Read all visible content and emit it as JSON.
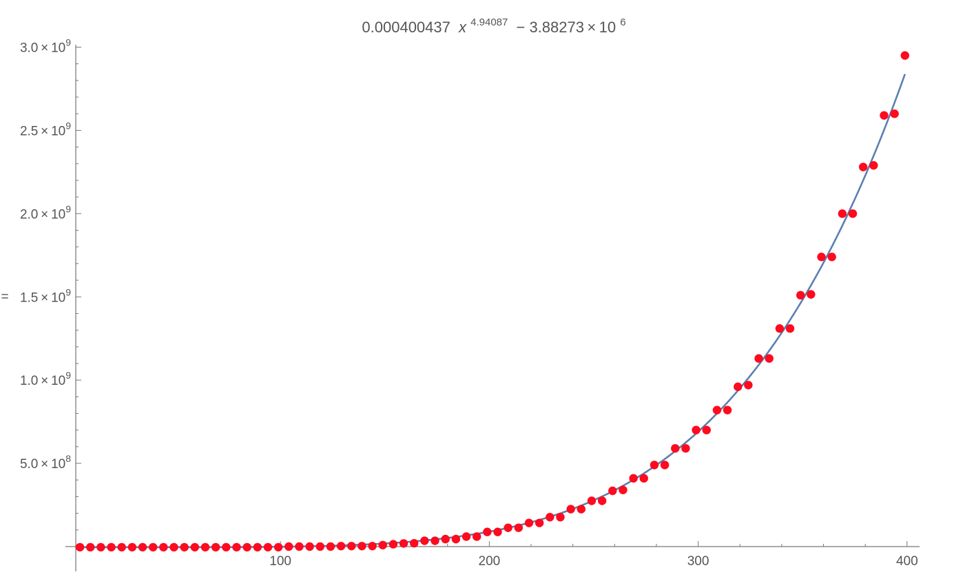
{
  "chart_data": {
    "type": "scatter",
    "title": {
      "coef": "0.000400437",
      "var": "x",
      "exponent": "4.94087",
      "rest": "− 3.88273 × 10",
      "rest_exponent": "6"
    },
    "ylabel": "=",
    "xlabel": "",
    "xlim": [
      2,
      406
    ],
    "ylim": [
      -160000000.0,
      3000000000.0
    ],
    "x_ticks": [
      {
        "value": 100,
        "label": "100"
      },
      {
        "value": 200,
        "label": "200"
      },
      {
        "value": 300,
        "label": "300"
      },
      {
        "value": 400,
        "label": "400"
      }
    ],
    "y_ticks": [
      {
        "value": 500000000,
        "mantissa": "5.0",
        "exp": "8"
      },
      {
        "value": 1000000000,
        "mantissa": "1.0",
        "exp": "9"
      },
      {
        "value": 1500000000,
        "mantissa": "1.5",
        "exp": "9"
      },
      {
        "value": 2000000000,
        "mantissa": "2.0",
        "exp": "9"
      },
      {
        "value": 2500000000,
        "mantissa": "2.5",
        "exp": "9"
      },
      {
        "value": 3000000000,
        "mantissa": "3.0",
        "exp": "9"
      }
    ],
    "fit": {
      "name": "",
      "coefficient": 0.000400437,
      "exponent": 4.94087,
      "offset": -3882730,
      "x_range": [
        4,
        399
      ],
      "color": "#5b7fb2"
    },
    "series": [
      {
        "name": "",
        "color": "#ff0a1e",
        "points": [
          [
            4,
            -3800000
          ],
          [
            9,
            -3800000
          ],
          [
            14,
            -3800000
          ],
          [
            19,
            -3800000
          ],
          [
            24,
            -3800000
          ],
          [
            29,
            -3800000
          ],
          [
            34,
            -3800000
          ],
          [
            39,
            -3800000
          ],
          [
            44,
            -3800000
          ],
          [
            49,
            -3800000
          ],
          [
            54,
            -3800000
          ],
          [
            59,
            -3800000
          ],
          [
            64,
            -3800000
          ],
          [
            69,
            -3800000
          ],
          [
            74,
            -3800000
          ],
          [
            79,
            -3800000
          ],
          [
            84,
            -3800000
          ],
          [
            89,
            -3800000
          ],
          [
            94,
            -3800000
          ],
          [
            99,
            -3800000
          ],
          [
            104,
            0
          ],
          [
            109,
            0
          ],
          [
            114,
            0
          ],
          [
            119,
            0
          ],
          [
            124,
            0
          ],
          [
            129,
            3000000
          ],
          [
            134,
            3000000
          ],
          [
            139,
            3000000
          ],
          [
            144,
            3000000
          ],
          [
            149,
            9000000
          ],
          [
            154,
            14000000
          ],
          [
            159,
            19000000
          ],
          [
            164,
            20000000
          ],
          [
            169,
            35000000
          ],
          [
            174,
            35000000
          ],
          [
            179,
            45000000
          ],
          [
            184,
            45000000
          ],
          [
            189,
            60000000
          ],
          [
            194,
            60000000
          ],
          [
            199,
            88000000
          ],
          [
            204,
            88000000
          ],
          [
            209,
            113000000
          ],
          [
            214,
            113000000
          ],
          [
            219,
            142000000
          ],
          [
            224,
            142000000
          ],
          [
            229,
            177000000
          ],
          [
            234,
            177000000
          ],
          [
            239,
            225000000
          ],
          [
            244,
            225000000
          ],
          [
            249,
            275000000
          ],
          [
            254,
            275000000
          ],
          [
            259,
            335000000
          ],
          [
            264,
            340000000
          ],
          [
            269,
            410000000
          ],
          [
            274,
            410000000
          ],
          [
            279,
            490000000
          ],
          [
            284,
            490000000
          ],
          [
            289,
            590000000
          ],
          [
            294,
            590000000
          ],
          [
            299,
            700000000
          ],
          [
            304,
            700000000
          ],
          [
            309,
            820000000
          ],
          [
            314,
            820000000
          ],
          [
            319,
            960000000
          ],
          [
            324,
            970000000
          ],
          [
            329,
            1130000000
          ],
          [
            334,
            1130000000
          ],
          [
            339,
            1310000000
          ],
          [
            344,
            1310000000
          ],
          [
            349,
            1510000000
          ],
          [
            354,
            1515000000
          ],
          [
            359,
            1740000000
          ],
          [
            364,
            1740000000
          ],
          [
            369,
            2000000000
          ],
          [
            374,
            2000000000
          ],
          [
            379,
            2280000000
          ],
          [
            384,
            2290000000
          ],
          [
            389,
            2590000000
          ],
          [
            394,
            2600000000
          ],
          [
            399,
            2950000000
          ]
        ]
      }
    ]
  }
}
